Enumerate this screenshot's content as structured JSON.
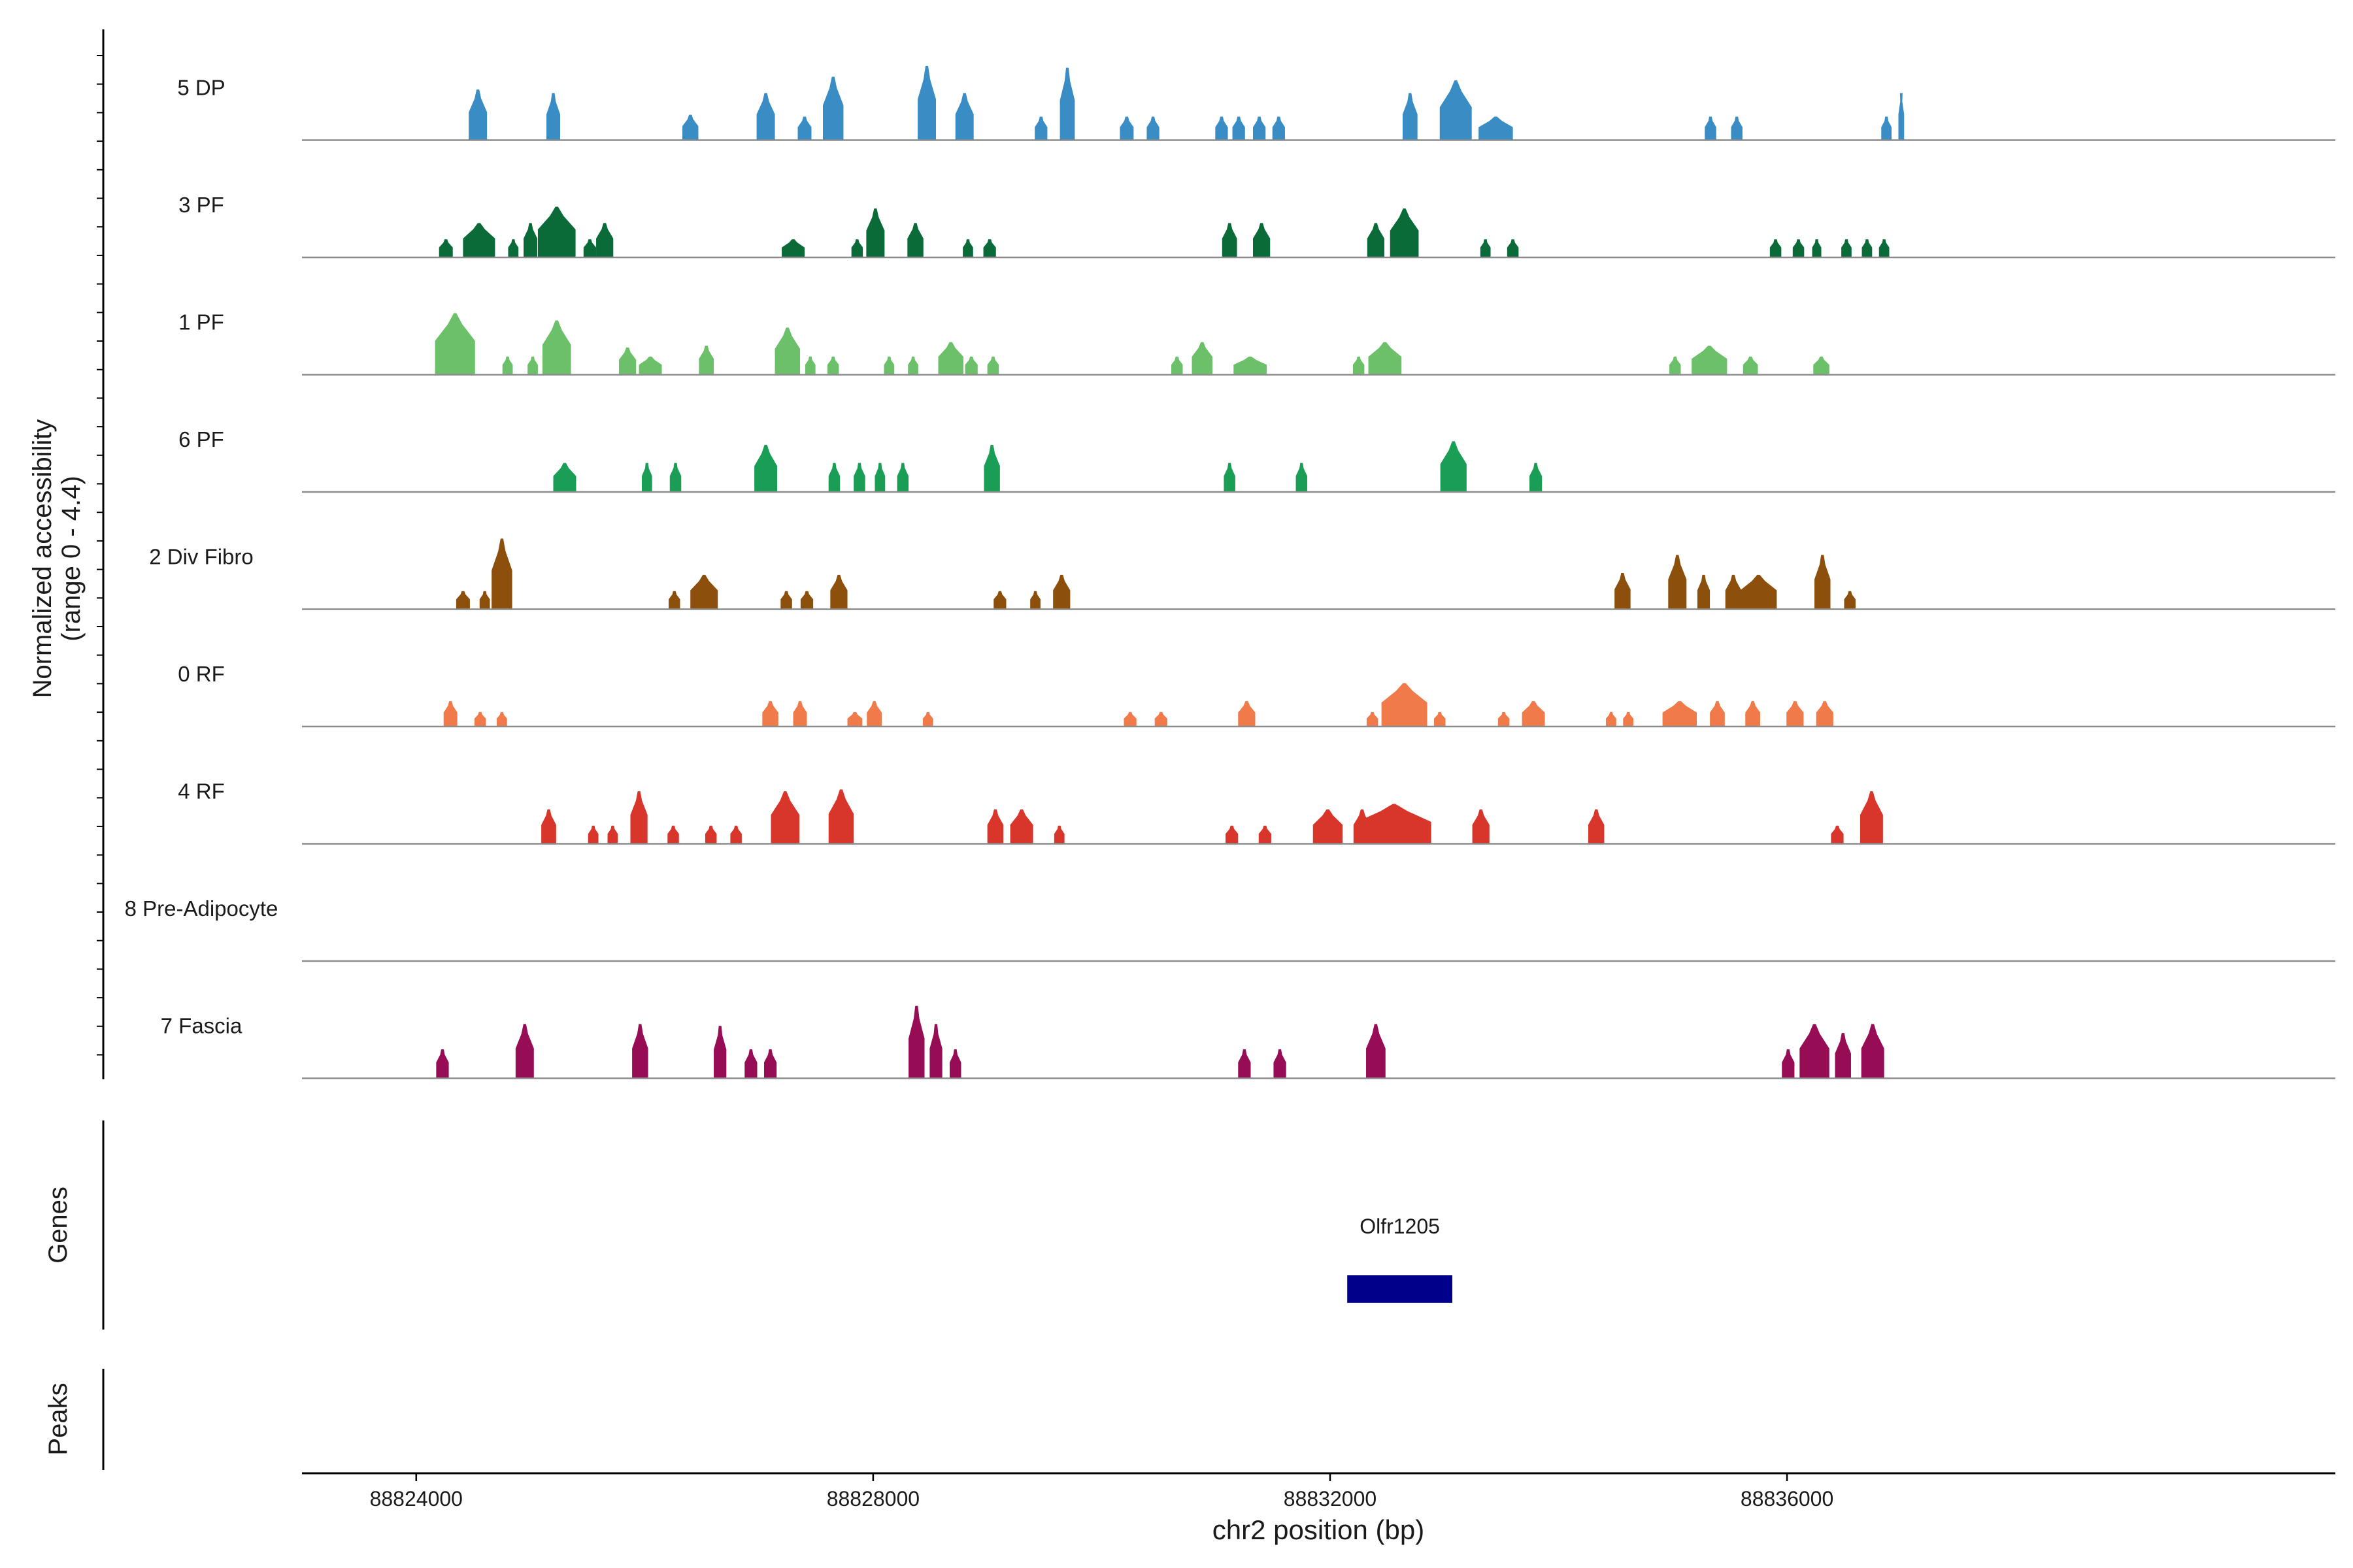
{
  "chart_data": {
    "type": "area",
    "title": "",
    "xlabel": "chr2 position (bp)",
    "ylabel_lines": [
      "Normalized accessibility",
      "(range 0 - 4.4)"
    ],
    "ylim": [
      0,
      4.4
    ],
    "xlim": [
      88823000,
      88840800
    ],
    "x_ticks": [
      88824000,
      88828000,
      88832000,
      88836000
    ],
    "x_tick_labels": [
      "88824000",
      "88828000",
      "88832000",
      "88836000"
    ],
    "panel_labels": {
      "genes": "Genes",
      "peaks": "Peaks"
    },
    "genes": [
      {
        "name": "Olfr1205",
        "start": 88832150,
        "end": 88833070,
        "color": "#00008b"
      }
    ],
    "tracks": [
      {
        "name": "5 DP",
        "color": "#3a8cc4",
        "peaks": [
          [
            88824540,
            160,
            2.8
          ],
          [
            88825200,
            120,
            2.6
          ],
          [
            88826400,
            140,
            1.4
          ],
          [
            88827060,
            160,
            2.6
          ],
          [
            88827400,
            120,
            1.3
          ],
          [
            88827650,
            180,
            3.5
          ],
          [
            88828470,
            160,
            4.1
          ],
          [
            88828800,
            160,
            2.6
          ],
          [
            88829470,
            110,
            1.3
          ],
          [
            88829700,
            130,
            4.0
          ],
          [
            88830220,
            120,
            1.3
          ],
          [
            88830450,
            110,
            1.3
          ],
          [
            88831050,
            110,
            1.3
          ],
          [
            88831200,
            110,
            1.3
          ],
          [
            88831380,
            110,
            1.3
          ],
          [
            88831550,
            110,
            1.3
          ],
          [
            88832700,
            130,
            2.6
          ],
          [
            88833100,
            280,
            3.3
          ],
          [
            88833450,
            300,
            1.3
          ],
          [
            88835330,
            100,
            1.3
          ],
          [
            88835560,
            100,
            1.3
          ],
          [
            88836870,
            90,
            1.3
          ],
          [
            88837000,
            50,
            2.6
          ]
        ]
      },
      {
        "name": "3 PF",
        "color": "#0b6b38",
        "peaks": [
          [
            88824260,
            120,
            1.0
          ],
          [
            88824550,
            280,
            1.9
          ],
          [
            88824850,
            90,
            1.0
          ],
          [
            88825000,
            120,
            1.9
          ],
          [
            88825230,
            330,
            2.8
          ],
          [
            88825520,
            110,
            1.0
          ],
          [
            88825650,
            150,
            1.9
          ],
          [
            88827300,
            200,
            1.0
          ],
          [
            88827860,
            100,
            1.0
          ],
          [
            88828020,
            160,
            2.7
          ],
          [
            88828370,
            140,
            1.9
          ],
          [
            88828830,
            90,
            1.0
          ],
          [
            88829020,
            110,
            1.0
          ],
          [
            88831120,
            130,
            1.9
          ],
          [
            88831400,
            150,
            1.9
          ],
          [
            88832400,
            150,
            1.9
          ],
          [
            88832650,
            250,
            2.7
          ],
          [
            88833360,
            90,
            1.0
          ],
          [
            88833600,
            100,
            1.0
          ],
          [
            88835900,
            100,
            1.0
          ],
          [
            88836100,
            100,
            1.0
          ],
          [
            88836260,
            80,
            1.0
          ],
          [
            88836520,
            90,
            1.0
          ],
          [
            88836700,
            90,
            1.0
          ],
          [
            88836850,
            90,
            1.0
          ]
        ]
      },
      {
        "name": "1 PF",
        "color": "#6cc06a",
        "peaks": [
          [
            88824340,
            350,
            3.4
          ],
          [
            88824800,
            90,
            1.0
          ],
          [
            88825020,
            90,
            1.0
          ],
          [
            88825230,
            250,
            3.0
          ],
          [
            88825850,
            150,
            1.5
          ],
          [
            88826050,
            200,
            1.0
          ],
          [
            88826540,
            130,
            1.6
          ],
          [
            88827250,
            220,
            2.6
          ],
          [
            88827450,
            90,
            1.0
          ],
          [
            88827650,
            100,
            1.0
          ],
          [
            88828140,
            90,
            1.0
          ],
          [
            88828350,
            90,
            1.0
          ],
          [
            88828680,
            220,
            1.8
          ],
          [
            88828860,
            110,
            1.0
          ],
          [
            88829050,
            100,
            1.0
          ],
          [
            88830660,
            100,
            1.0
          ],
          [
            88830880,
            180,
            1.8
          ],
          [
            88831300,
            290,
            1.0
          ],
          [
            88832250,
            100,
            1.0
          ],
          [
            88832480,
            290,
            1.8
          ],
          [
            88835020,
            100,
            1.0
          ],
          [
            88835320,
            310,
            1.6
          ],
          [
            88835680,
            130,
            1.0
          ],
          [
            88836300,
            140,
            1.0
          ]
        ]
      },
      {
        "name": "6 PF",
        "color": "#1a9e55",
        "peaks": [
          [
            88825300,
            200,
            1.6
          ],
          [
            88826020,
            90,
            1.6
          ],
          [
            88826270,
            100,
            1.6
          ],
          [
            88827060,
            200,
            2.6
          ],
          [
            88827660,
            100,
            1.6
          ],
          [
            88827880,
            100,
            1.6
          ],
          [
            88828060,
            90,
            1.6
          ],
          [
            88828260,
            100,
            1.6
          ],
          [
            88829040,
            140,
            2.6
          ],
          [
            88831120,
            100,
            1.6
          ],
          [
            88831750,
            100,
            1.6
          ],
          [
            88833080,
            230,
            2.8
          ],
          [
            88833800,
            110,
            1.6
          ]
        ]
      },
      {
        "name": "2 Div Fibro",
        "color": "#8c500c",
        "peaks": [
          [
            88824410,
            120,
            1.0
          ],
          [
            88824600,
            90,
            1.0
          ],
          [
            88824750,
            180,
            3.9
          ],
          [
            88826260,
            100,
            1.0
          ],
          [
            88826520,
            240,
            1.9
          ],
          [
            88827240,
            100,
            1.0
          ],
          [
            88827420,
            110,
            1.0
          ],
          [
            88827700,
            150,
            1.9
          ],
          [
            88829110,
            110,
            1.0
          ],
          [
            88829420,
            90,
            1.0
          ],
          [
            88829650,
            150,
            1.9
          ],
          [
            88834560,
            140,
            2.0
          ],
          [
            88835040,
            160,
            3.0
          ],
          [
            88835270,
            110,
            1.9
          ],
          [
            88835530,
            140,
            1.9
          ],
          [
            88835750,
            320,
            1.9
          ],
          [
            88836310,
            140,
            3.0
          ],
          [
            88836550,
            100,
            1.0
          ]
        ]
      },
      {
        "name": "0 RF",
        "color": "#f07a4a",
        "peaks": [
          [
            88824300,
            120,
            1.4
          ],
          [
            88824560,
            100,
            0.8
          ],
          [
            88824750,
            90,
            0.8
          ],
          [
            88827100,
            140,
            1.4
          ],
          [
            88827360,
            120,
            1.4
          ],
          [
            88827840,
            130,
            0.8
          ],
          [
            88828010,
            130,
            1.4
          ],
          [
            88828480,
            90,
            0.8
          ],
          [
            88830250,
            110,
            0.8
          ],
          [
            88830520,
            110,
            0.8
          ],
          [
            88831270,
            150,
            1.4
          ],
          [
            88832370,
            100,
            0.8
          ],
          [
            88832650,
            400,
            2.4
          ],
          [
            88832960,
            100,
            0.8
          ],
          [
            88833520,
            100,
            0.8
          ],
          [
            88833780,
            200,
            1.4
          ],
          [
            88834460,
            90,
            0.8
          ],
          [
            88834610,
            90,
            0.8
          ],
          [
            88835060,
            300,
            1.4
          ],
          [
            88835390,
            130,
            1.4
          ],
          [
            88835700,
            130,
            1.4
          ],
          [
            88836070,
            150,
            1.4
          ],
          [
            88836330,
            150,
            1.4
          ]
        ]
      },
      {
        "name": "4 RF",
        "color": "#d9362b",
        "peaks": [
          [
            88825160,
            130,
            1.9
          ],
          [
            88825550,
            90,
            1.0
          ],
          [
            88825720,
            90,
            1.0
          ],
          [
            88825950,
            150,
            2.9
          ],
          [
            88826250,
            100,
            1.0
          ],
          [
            88826580,
            100,
            1.0
          ],
          [
            88826800,
            100,
            1.0
          ],
          [
            88827230,
            250,
            2.9
          ],
          [
            88827720,
            220,
            3.0
          ],
          [
            88829070,
            140,
            1.9
          ],
          [
            88829300,
            200,
            1.9
          ],
          [
            88829630,
            90,
            1.0
          ],
          [
            88831140,
            110,
            1.0
          ],
          [
            88831430,
            110,
            1.0
          ],
          [
            88831980,
            260,
            1.9
          ],
          [
            88832280,
            150,
            1.9
          ],
          [
            88832560,
            650,
            2.2
          ],
          [
            88833320,
            150,
            1.9
          ],
          [
            88834330,
            140,
            1.9
          ],
          [
            88836440,
            110,
            1.0
          ],
          [
            88836740,
            200,
            2.9
          ]
        ]
      },
      {
        "name": "8 Pre-Adipocyte",
        "color": "#7f4ea0",
        "peaks": []
      },
      {
        "name": "7 Fascia",
        "color": "#960c55",
        "peaks": [
          [
            88824230,
            110,
            1.6
          ],
          [
            88824950,
            160,
            3.0
          ],
          [
            88825960,
            140,
            3.0
          ],
          [
            88826660,
            110,
            2.9
          ],
          [
            88826930,
            110,
            1.6
          ],
          [
            88827100,
            110,
            1.6
          ],
          [
            88828380,
            140,
            4.0
          ],
          [
            88828550,
            110,
            3.0
          ],
          [
            88828720,
            100,
            1.6
          ],
          [
            88831250,
            110,
            1.6
          ],
          [
            88831560,
            110,
            1.6
          ],
          [
            88832400,
            170,
            3.0
          ],
          [
            88836010,
            110,
            1.6
          ],
          [
            88836240,
            260,
            3.0
          ],
          [
            88836490,
            140,
            2.5
          ],
          [
            88836750,
            200,
            3.0
          ]
        ]
      }
    ]
  }
}
